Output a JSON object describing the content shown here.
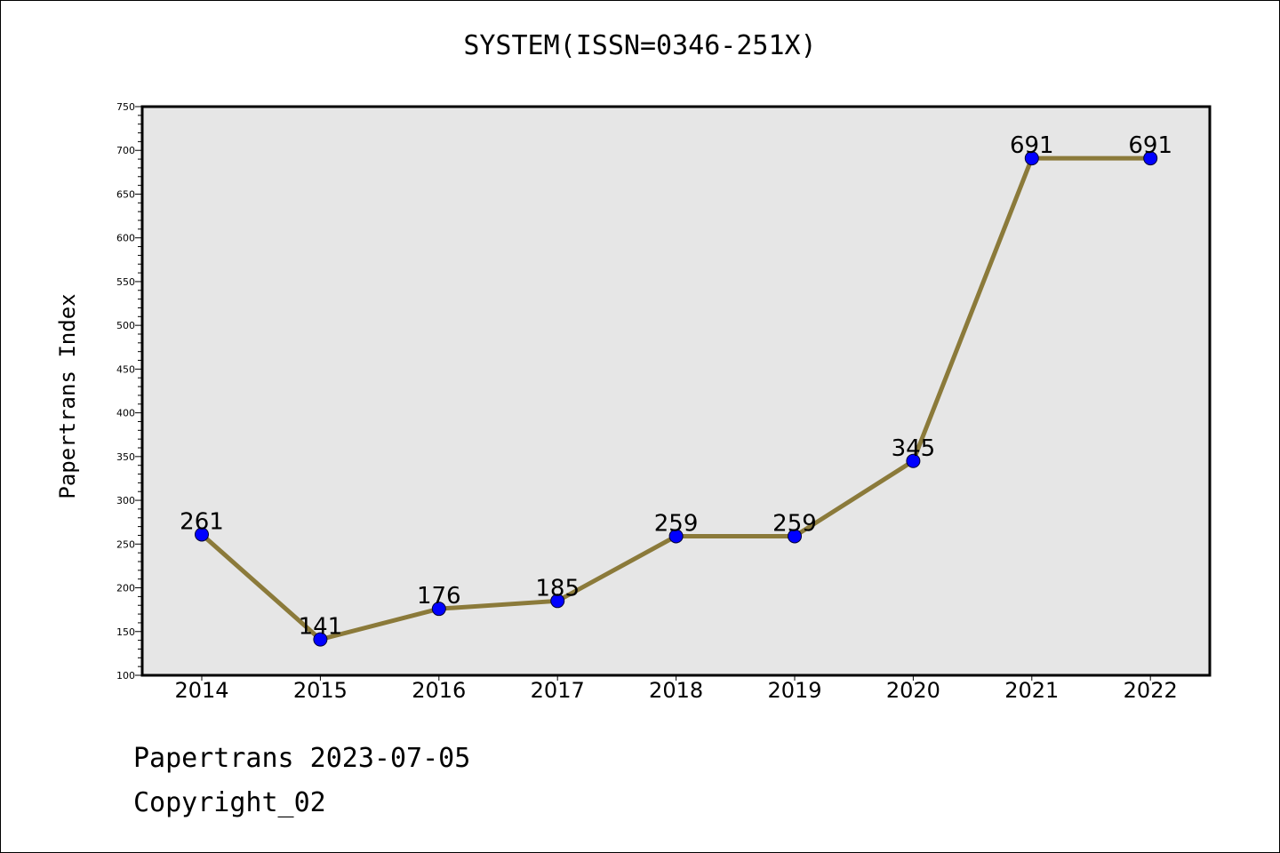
{
  "chart_data": {
    "type": "line",
    "title": "SYSTEM(ISSN=0346-251X)",
    "xlabel": "",
    "ylabel": "Papertrans Index",
    "categories": [
      "2014",
      "2015",
      "2016",
      "2017",
      "2018",
      "2019",
      "2020",
      "2021",
      "2022"
    ],
    "series": [
      {
        "values": [
          261,
          141,
          176,
          185,
          259,
          259,
          345,
          691,
          691
        ]
      }
    ],
    "ylim": [
      100,
      750
    ],
    "yticks": [
      100,
      150,
      200,
      250,
      300,
      350,
      400,
      450,
      500,
      550,
      600,
      650,
      700,
      750
    ],
    "grid": false,
    "colors": {
      "line": "#8b7a3a",
      "marker": "#0000ff",
      "plot_background": "#e6e6e6"
    }
  },
  "footer": {
    "line1": "Papertrans 2023-07-05",
    "line2": "Copyright_02"
  }
}
